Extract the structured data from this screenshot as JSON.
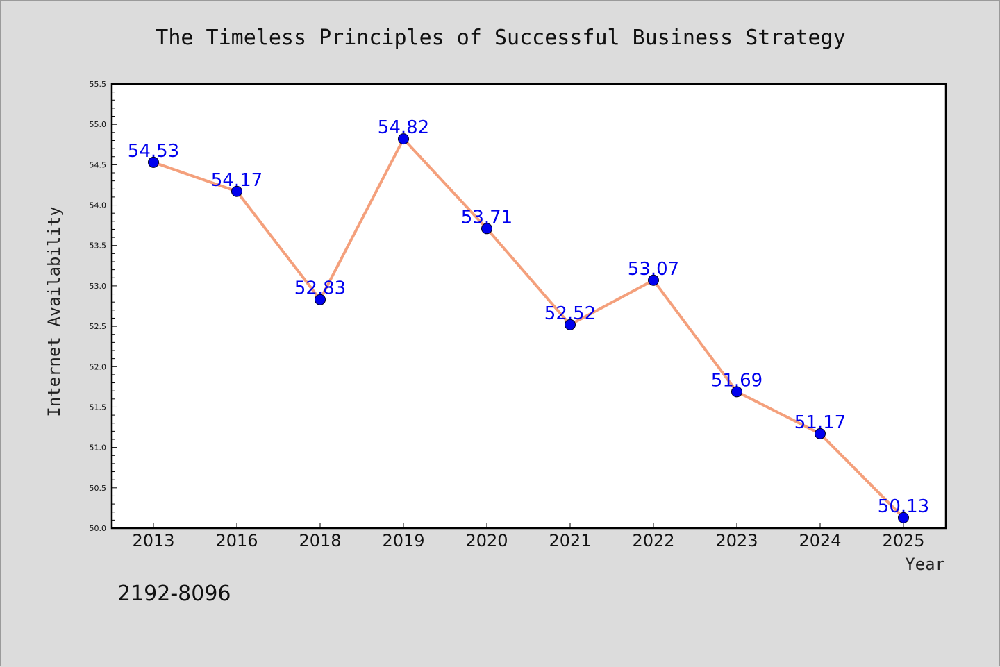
{
  "chart_data": {
    "type": "line",
    "title": "The Timeless Principles of Successful Business Strategy",
    "xlabel": "Year",
    "ylabel": "Internet Availability",
    "categories": [
      "2013",
      "2016",
      "2018",
      "2019",
      "2020",
      "2021",
      "2022",
      "2023",
      "2024",
      "2025"
    ],
    "values": [
      54.53,
      54.17,
      52.83,
      54.82,
      53.71,
      52.52,
      53.07,
      51.69,
      51.17,
      50.13
    ],
    "data_labels": [
      "54.53",
      "54.17",
      "52.83",
      "54.82",
      "53.71",
      "52.52",
      "53.07",
      "51.69",
      "51.17",
      "50.13"
    ],
    "ylim": [
      50.0,
      55.5
    ],
    "yticks": [
      "50.0",
      "50.5",
      "51.0",
      "51.5",
      "52.0",
      "52.5",
      "53.0",
      "53.5",
      "54.0",
      "54.5",
      "55.0",
      "55.5"
    ],
    "grid": false,
    "legend": "none",
    "line_color": "#f4a07c",
    "marker_color": "#0000ee",
    "label_color": "#0000ee"
  },
  "footnote": "2192-8096"
}
